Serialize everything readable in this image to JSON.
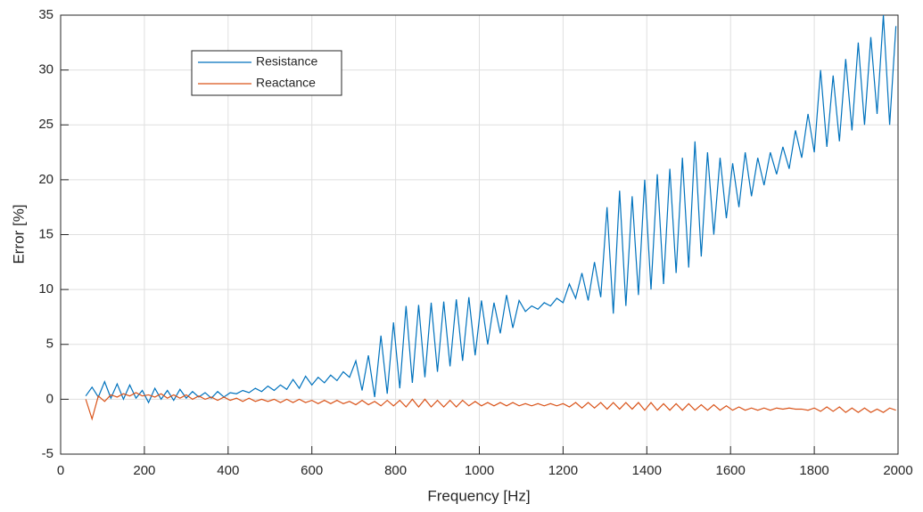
{
  "chart_data": {
    "type": "line",
    "x_label": "Frequency [Hz]",
    "y_label": "Error [%]",
    "x": [
      60,
      75,
      90,
      105,
      120,
      135,
      150,
      165,
      180,
      195,
      210,
      225,
      240,
      255,
      270,
      285,
      300,
      315,
      330,
      345,
      360,
      375,
      390,
      405,
      420,
      435,
      450,
      465,
      480,
      495,
      510,
      525,
      540,
      555,
      570,
      585,
      600,
      615,
      630,
      645,
      660,
      675,
      690,
      705,
      720,
      735,
      750,
      765,
      780,
      795,
      810,
      825,
      840,
      855,
      870,
      885,
      900,
      915,
      930,
      945,
      960,
      975,
      990,
      1005,
      1020,
      1035,
      1050,
      1065,
      1080,
      1095,
      1110,
      1125,
      1140,
      1155,
      1170,
      1185,
      1200,
      1215,
      1230,
      1245,
      1260,
      1275,
      1290,
      1305,
      1320,
      1335,
      1350,
      1365,
      1380,
      1395,
      1410,
      1425,
      1440,
      1455,
      1470,
      1485,
      1500,
      1515,
      1530,
      1545,
      1560,
      1575,
      1590,
      1605,
      1620,
      1635,
      1650,
      1665,
      1680,
      1695,
      1710,
      1725,
      1740,
      1755,
      1770,
      1785,
      1800,
      1815,
      1830,
      1845,
      1860,
      1875,
      1890,
      1905,
      1920,
      1935,
      1950,
      1965,
      1980,
      1995
    ],
    "series": [
      {
        "name": "Resistance",
        "color": "#0072bd",
        "values": [
          0.3,
          1.1,
          0.2,
          1.6,
          0.1,
          1.4,
          0,
          1.3,
          0.1,
          0.8,
          -0.3,
          1.0,
          0,
          0.8,
          -0.1,
          0.9,
          0.1,
          0.7,
          0.2,
          0.6,
          0.1,
          0.7,
          0.2,
          0.6,
          0.5,
          0.8,
          0.6,
          1.0,
          0.7,
          1.2,
          0.8,
          1.3,
          0.9,
          1.8,
          1.0,
          2.1,
          1.3,
          2.0,
          1.5,
          2.2,
          1.7,
          2.5,
          2.0,
          3.5,
          0.8,
          4.0,
          0.2,
          5.8,
          0.5,
          7.0,
          1.0,
          8.5,
          1.5,
          8.6,
          2.0,
          8.8,
          2.5,
          8.9,
          3.0,
          9.1,
          3.5,
          9.3,
          4.0,
          9.0,
          5.0,
          8.8,
          6.0,
          9.5,
          6.5,
          9.0,
          8.0,
          8.5,
          8.2,
          8.8,
          8.5,
          9.2,
          8.8,
          10.5,
          9.2,
          11.5,
          9.0,
          12.5,
          9.3,
          17.5,
          7.8,
          19.0,
          8.5,
          18.5,
          9.5,
          20.0,
          10.0,
          20.5,
          10.5,
          21.0,
          11.5,
          22.0,
          12.0,
          23.5,
          13.0,
          22.5,
          15.0,
          22.0,
          16.5,
          21.5,
          17.5,
          22.5,
          18.5,
          22.0,
          19.5,
          22.5,
          20.5,
          23.0,
          21.0,
          24.5,
          22.0,
          26.0,
          22.5,
          30.0,
          23.0,
          29.5,
          23.5,
          31.0,
          24.5,
          32.5,
          25.0,
          33.0,
          26.0,
          35.0,
          25.0,
          34.0
        ]
      },
      {
        "name": "Reactance",
        "color": "#d95319",
        "values": [
          0,
          -1.8,
          0.3,
          -0.2,
          0.4,
          0.2,
          0.5,
          0.3,
          0.6,
          0.3,
          0.4,
          0.2,
          0.5,
          0.1,
          0.4,
          0.1,
          0.4,
          0,
          0.3,
          0,
          0.2,
          -0.1,
          0.2,
          -0.1,
          0.1,
          -0.2,
          0.1,
          -0.2,
          0,
          -0.2,
          0,
          -0.3,
          0,
          -0.3,
          0,
          -0.3,
          -0.1,
          -0.4,
          -0.1,
          -0.4,
          -0.1,
          -0.4,
          -0.2,
          -0.5,
          -0.1,
          -0.5,
          -0.2,
          -0.6,
          -0.1,
          -0.6,
          -0.1,
          -0.7,
          0,
          -0.7,
          0,
          -0.7,
          -0.1,
          -0.7,
          -0.1,
          -0.7,
          -0.1,
          -0.6,
          -0.2,
          -0.6,
          -0.3,
          -0.6,
          -0.3,
          -0.6,
          -0.3,
          -0.6,
          -0.4,
          -0.6,
          -0.4,
          -0.6,
          -0.4,
          -0.6,
          -0.4,
          -0.7,
          -0.3,
          -0.8,
          -0.3,
          -0.8,
          -0.3,
          -0.9,
          -0.3,
          -0.9,
          -0.3,
          -0.9,
          -0.3,
          -1.0,
          -0.3,
          -1.0,
          -0.4,
          -1.0,
          -0.4,
          -1.0,
          -0.4,
          -1.0,
          -0.5,
          -1.0,
          -0.5,
          -1.0,
          -0.6,
          -1.0,
          -0.7,
          -1.0,
          -0.8,
          -1.0,
          -0.8,
          -1.0,
          -0.8,
          -0.9,
          -0.8,
          -0.9,
          -0.9,
          -1.0,
          -0.8,
          -1.1,
          -0.7,
          -1.1,
          -0.7,
          -1.2,
          -0.8,
          -1.2,
          -0.8,
          -1.2,
          -0.9,
          -1.2,
          -0.8,
          -1.0
        ]
      }
    ],
    "xlim": [
      0,
      2000
    ],
    "xticks": [
      0,
      200,
      400,
      600,
      800,
      1000,
      1200,
      1400,
      1600,
      1800,
      2000
    ],
    "ylim": [
      -5,
      35
    ],
    "yticks": [
      -5,
      0,
      5,
      10,
      15,
      20,
      25,
      30,
      35
    ],
    "grid": true
  }
}
